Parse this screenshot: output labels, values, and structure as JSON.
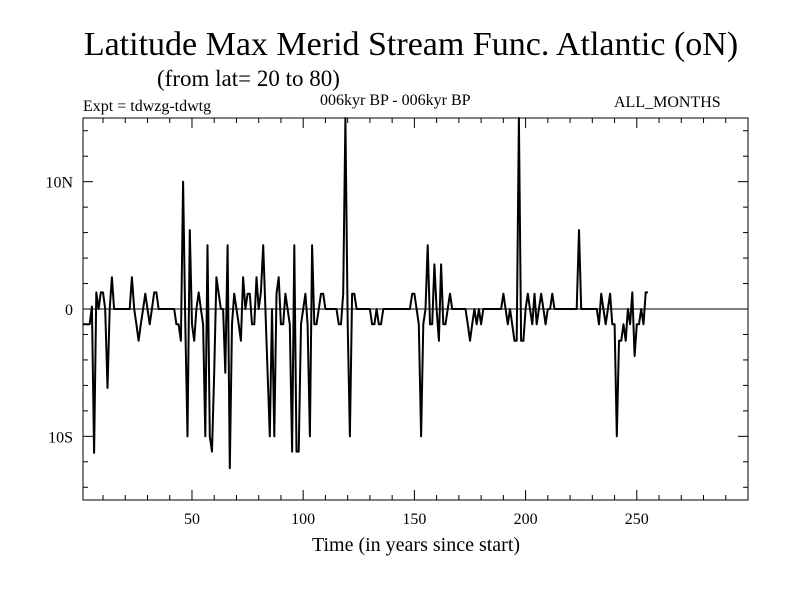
{
  "chart_data": {
    "type": "line",
    "title": "Latitude Max Merid Stream Func. Atlantic (oN)",
    "subtitle": "(from lat= 20 to 80)",
    "experiment_label": "Expt = tdwzg-tdwtg",
    "period_label": "006kyr BP - 006kyr BP",
    "months_label": "ALL_MONTHS",
    "xlabel": "Time (in years since start)",
    "ylabel": "",
    "xlim": [
      1,
      300
    ],
    "ylim": [
      -15,
      15
    ],
    "x_ticks": [
      50,
      100,
      150,
      200,
      250
    ],
    "x_tick_labels": [
      "50",
      "100",
      "150",
      "200",
      "250"
    ],
    "y_ticks": [
      10,
      0,
      -10
    ],
    "y_tick_labels": [
      "10N",
      "0",
      "10S"
    ],
    "grid": false,
    "zero_line": true,
    "series": [
      {
        "color": "#000000",
        "points": [
          [
            1,
            -1.2
          ],
          [
            2,
            -1.2
          ],
          [
            4,
            -1.2
          ],
          [
            5,
            0.2
          ],
          [
            6,
            -11.3
          ],
          [
            7,
            1.3
          ],
          [
            8,
            0
          ],
          [
            9,
            1.3
          ],
          [
            10,
            1.3
          ],
          [
            11,
            0
          ],
          [
            12,
            -6.2
          ],
          [
            13,
            0
          ],
          [
            14,
            2.5
          ],
          [
            15,
            0
          ],
          [
            22,
            0
          ],
          [
            23,
            2.5
          ],
          [
            24,
            0
          ],
          [
            25,
            -1.2
          ],
          [
            26,
            -2.5
          ],
          [
            27,
            -1.2
          ],
          [
            28,
            0
          ],
          [
            29,
            1.2
          ],
          [
            30,
            0
          ],
          [
            31,
            -1.2
          ],
          [
            32,
            0
          ],
          [
            33,
            1.3
          ],
          [
            34,
            1.3
          ],
          [
            35,
            0
          ],
          [
            42,
            0
          ],
          [
            43,
            -1.2
          ],
          [
            44,
            -1.2
          ],
          [
            45,
            -2.5
          ],
          [
            46,
            10
          ],
          [
            47,
            -1.2
          ],
          [
            48,
            -10
          ],
          [
            49,
            6.2
          ],
          [
            50,
            -1.2
          ],
          [
            51,
            -2.5
          ],
          [
            52,
            0
          ],
          [
            53,
            1.3
          ],
          [
            54,
            0
          ],
          [
            55,
            -1.2
          ],
          [
            56,
            -10
          ],
          [
            57,
            5
          ],
          [
            58,
            -10
          ],
          [
            59,
            -11.2
          ],
          [
            60,
            -5
          ],
          [
            61,
            2.5
          ],
          [
            62,
            1.2
          ],
          [
            63,
            0
          ],
          [
            64,
            0
          ],
          [
            65,
            -5
          ],
          [
            66,
            5
          ],
          [
            67,
            -12.5
          ],
          [
            68,
            -1.2
          ],
          [
            69,
            1.2
          ],
          [
            70,
            0
          ],
          [
            71,
            -1.2
          ],
          [
            72,
            -2.5
          ],
          [
            73,
            2.5
          ],
          [
            74,
            0
          ],
          [
            75,
            1.2
          ],
          [
            76,
            1.2
          ],
          [
            77,
            -1.2
          ],
          [
            78,
            -1.2
          ],
          [
            79,
            2.5
          ],
          [
            80,
            0
          ],
          [
            81,
            1.3
          ],
          [
            82,
            5
          ],
          [
            83,
            0
          ],
          [
            84,
            -5
          ],
          [
            85,
            -10
          ],
          [
            86,
            0
          ],
          [
            87,
            -10
          ],
          [
            88,
            1.2
          ],
          [
            89,
            2.5
          ],
          [
            90,
            -1.2
          ],
          [
            91,
            -1.2
          ],
          [
            92,
            1.2
          ],
          [
            93,
            0
          ],
          [
            94,
            -1.2
          ],
          [
            95,
            -11.2
          ],
          [
            96,
            5
          ],
          [
            97,
            -11.2
          ],
          [
            98,
            -11.2
          ],
          [
            99,
            -1.2
          ],
          [
            100,
            0
          ],
          [
            101,
            1.2
          ],
          [
            102,
            -1.2
          ],
          [
            103,
            -10
          ],
          [
            104,
            5
          ],
          [
            105,
            -1.2
          ],
          [
            106,
            -1.2
          ],
          [
            107,
            0
          ],
          [
            108,
            1.2
          ],
          [
            109,
            1.2
          ],
          [
            110,
            0
          ],
          [
            115,
            0
          ],
          [
            116,
            -1.2
          ],
          [
            117,
            -1.2
          ],
          [
            118,
            1.2
          ],
          [
            119,
            15
          ],
          [
            120,
            -1.2
          ],
          [
            121,
            -10
          ],
          [
            122,
            1.2
          ],
          [
            123,
            1.2
          ],
          [
            124,
            0
          ],
          [
            130,
            0
          ],
          [
            131,
            -1.2
          ],
          [
            132,
            -1.2
          ],
          [
            133,
            0
          ],
          [
            134,
            -1.2
          ],
          [
            135,
            -1.2
          ],
          [
            136,
            0
          ],
          [
            148,
            0
          ],
          [
            149,
            1.2
          ],
          [
            150,
            1.2
          ],
          [
            151,
            0
          ],
          [
            152,
            -1.2
          ],
          [
            153,
            -10
          ],
          [
            154,
            -1.2
          ],
          [
            155,
            0
          ],
          [
            156,
            5
          ],
          [
            157,
            -1.2
          ],
          [
            158,
            -1.2
          ],
          [
            159,
            3.5
          ],
          [
            160,
            0
          ],
          [
            161,
            -2.5
          ],
          [
            162,
            3.5
          ],
          [
            163,
            -1.2
          ],
          [
            164,
            -1.2
          ],
          [
            165,
            0
          ],
          [
            166,
            1.2
          ],
          [
            167,
            0
          ],
          [
            173,
            0
          ],
          [
            174,
            -1.2
          ],
          [
            175,
            -2.5
          ],
          [
            176,
            -1.2
          ],
          [
            177,
            0
          ],
          [
            178,
            -1.2
          ],
          [
            179,
            0
          ],
          [
            180,
            -1.2
          ],
          [
            181,
            0
          ],
          [
            189,
            0
          ],
          [
            190,
            1.2
          ],
          [
            191,
            0
          ],
          [
            192,
            -1.2
          ],
          [
            193,
            0
          ],
          [
            194,
            -1.2
          ],
          [
            195,
            -2.5
          ],
          [
            196,
            -2.5
          ],
          [
            197,
            15
          ],
          [
            198,
            -2.5
          ],
          [
            199,
            -2.5
          ],
          [
            200,
            0
          ],
          [
            201,
            1.2
          ],
          [
            202,
            0
          ],
          [
            203,
            -1.2
          ],
          [
            204,
            1.2
          ],
          [
            205,
            -1.2
          ],
          [
            206,
            0
          ],
          [
            207,
            1.2
          ],
          [
            208,
            0
          ],
          [
            209,
            -1.2
          ],
          [
            210,
            0
          ],
          [
            211,
            0
          ],
          [
            212,
            1.2
          ],
          [
            213,
            0
          ],
          [
            223,
            0
          ],
          [
            224,
            6.2
          ],
          [
            225,
            0
          ],
          [
            232,
            0
          ],
          [
            233,
            -1.2
          ],
          [
            234,
            1.2
          ],
          [
            235,
            0
          ],
          [
            236,
            -1.2
          ],
          [
            237,
            0
          ],
          [
            238,
            1.2
          ],
          [
            239,
            -1.2
          ],
          [
            240,
            -1.2
          ],
          [
            241,
            -10
          ],
          [
            242,
            -2.5
          ],
          [
            243,
            -2.5
          ],
          [
            244,
            -1.2
          ],
          [
            245,
            -2.5
          ],
          [
            246,
            0
          ],
          [
            247,
            -1.2
          ],
          [
            248,
            1.3
          ],
          [
            249,
            -3.7
          ],
          [
            250,
            -1.2
          ],
          [
            251,
            -1.2
          ],
          [
            252,
            0
          ],
          [
            253,
            -1.2
          ],
          [
            254,
            1.3
          ],
          [
            255,
            1.3
          ]
        ]
      }
    ]
  }
}
